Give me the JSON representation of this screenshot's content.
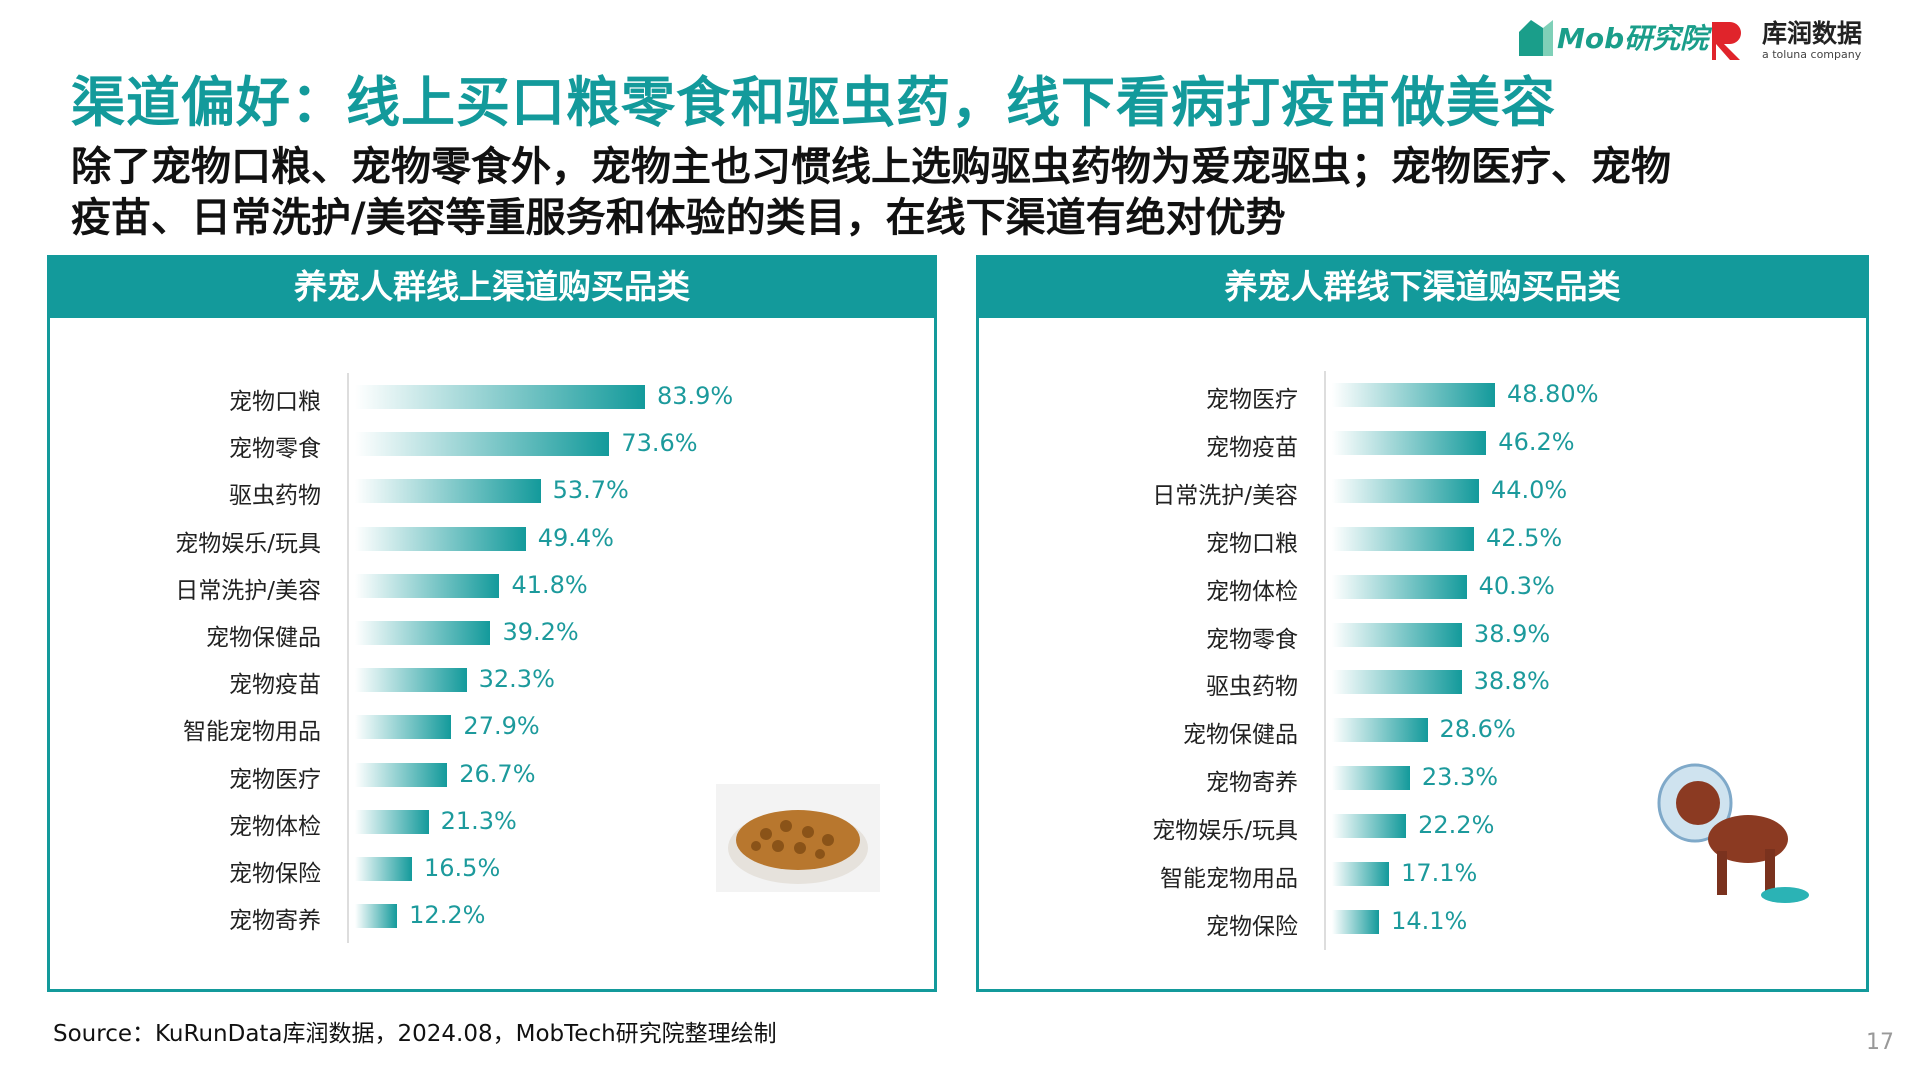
{
  "logos": {
    "mob": "Mob研究院",
    "kurun": "库润数据",
    "kurun_sub": "a toluna company"
  },
  "title": "渠道偏好：线上买口粮零食和驱虫药，线下看病打疫苗做美容",
  "subtitle": [
    "除了宠物口粮、宠物零食外，宠物主也习惯线上选购驱虫药物为爱宠驱虫；宠物医疗、宠物",
    "疫苗、日常洗护/美容等重服务和体验的类目，在线下渠道有绝对优势"
  ],
  "colors": {
    "accent": "#139a9b"
  },
  "chart_data": [
    {
      "type": "bar",
      "orientation": "horizontal",
      "title": "养宠人群线上渠道购买品类",
      "categories": [
        "宠物口粮",
        "宠物零食",
        "驱虫药物",
        "宠物娱乐/玩具",
        "日常洗护/美容",
        "宠物保健品",
        "宠物疫苗",
        "智能宠物用品",
        "宠物医疗",
        "宠物体检",
        "宠物保险",
        "宠物寄养"
      ],
      "values": [
        83.9,
        73.6,
        53.7,
        49.4,
        41.8,
        39.2,
        32.3,
        27.9,
        26.7,
        21.3,
        16.5,
        12.2
      ],
      "labels": [
        "83.9%",
        "73.6%",
        "53.7%",
        "49.4%",
        "41.8%",
        "39.2%",
        "32.3%",
        "27.9%",
        "26.7%",
        "21.3%",
        "16.5%",
        "12.2%"
      ]
    },
    {
      "type": "bar",
      "orientation": "horizontal",
      "title": "养宠人群线下渠道购买品类",
      "categories": [
        "宠物医疗",
        "宠物疫苗",
        "日常洗护/美容",
        "宠物口粮",
        "宠物体检",
        "宠物零食",
        "驱虫药物",
        "宠物保健品",
        "宠物寄养",
        "宠物娱乐/玩具",
        "智能宠物用品",
        "宠物保险"
      ],
      "values": [
        48.8,
        46.2,
        44.0,
        42.5,
        40.3,
        38.9,
        38.8,
        28.6,
        23.3,
        22.2,
        17.1,
        14.1
      ],
      "labels": [
        "48.80%",
        "46.2%",
        "44.0%",
        "42.5%",
        "40.3%",
        "38.9%",
        "38.8%",
        "28.6%",
        "23.3%",
        "22.2%",
        "17.1%",
        "14.1%"
      ]
    }
  ],
  "source": "Source：KuRunData库润数据，2024.08，MobTech研究院整理绘制",
  "page_number": "17"
}
